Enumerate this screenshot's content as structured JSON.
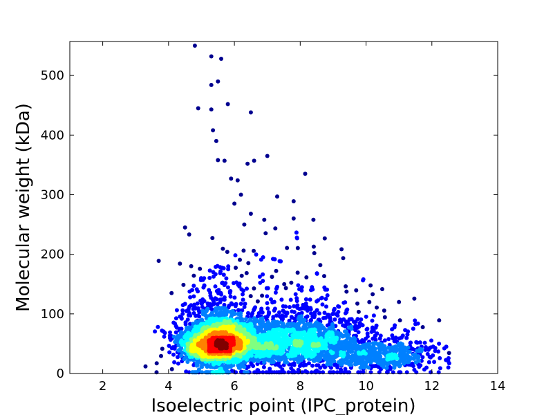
{
  "chart_data": {
    "type": "scatter",
    "title": "",
    "xlabel": "Isoelectric point (IPC_protein)",
    "ylabel": "Molecular weight (kDa)",
    "xlim": [
      1,
      14
    ],
    "ylim": [
      0,
      557
    ],
    "xticks": [
      2,
      4,
      6,
      8,
      10,
      12,
      14
    ],
    "yticks": [
      0,
      100,
      200,
      300,
      400,
      500
    ],
    "xtick_labels": [
      "2",
      "4",
      "6",
      "8",
      "10",
      "12",
      "14"
    ],
    "ytick_labels": [
      "0",
      "100",
      "200",
      "300",
      "400",
      "500"
    ],
    "grid": false,
    "legend": "none",
    "colormap": [
      "#00008f",
      "#0000ff",
      "#0080ff",
      "#00ffff",
      "#80ff80",
      "#ffff00",
      "#ff8000",
      "#ff0000",
      "#800000"
    ],
    "density_clusters": [
      {
        "x": 5.5,
        "y": 45,
        "sx": 0.55,
        "sy": 22,
        "weight": 0.55
      },
      {
        "x": 7.8,
        "y": 45,
        "sx": 1.1,
        "sy": 25,
        "weight": 0.35
      },
      {
        "x": 10.5,
        "y": 25,
        "sx": 0.9,
        "sy": 15,
        "weight": 0.1
      }
    ],
    "outliers": [
      [
        4.8,
        550
      ],
      [
        5.3,
        532
      ],
      [
        5.6,
        528
      ],
      [
        5.5,
        490
      ],
      [
        5.3,
        484
      ],
      [
        4.9,
        445
      ],
      [
        5.3,
        443
      ],
      [
        5.8,
        452
      ],
      [
        6.5,
        438
      ],
      [
        5.35,
        408
      ],
      [
        5.45,
        390
      ],
      [
        7.0,
        365
      ],
      [
        5.5,
        358
      ],
      [
        5.7,
        357
      ],
      [
        6.6,
        357
      ],
      [
        6.4,
        352
      ],
      [
        8.15,
        335
      ],
      [
        5.9,
        327
      ],
      [
        6.1,
        324
      ],
      [
        6.2,
        300
      ],
      [
        6.0,
        285
      ],
      [
        7.3,
        297
      ],
      [
        7.8,
        289
      ],
      [
        3.7,
        189
      ],
      [
        8.4,
        258
      ],
      [
        7.8,
        260
      ],
      [
        6.5,
        268
      ],
      [
        6.3,
        250
      ],
      [
        4.5,
        245
      ],
      [
        7.9,
        228
      ],
      [
        11.0,
        120
      ],
      [
        11.5,
        83
      ],
      [
        12.5,
        10
      ],
      [
        3.3,
        12
      ],
      [
        3.8,
        72
      ],
      [
        10.2,
        133
      ]
    ]
  }
}
